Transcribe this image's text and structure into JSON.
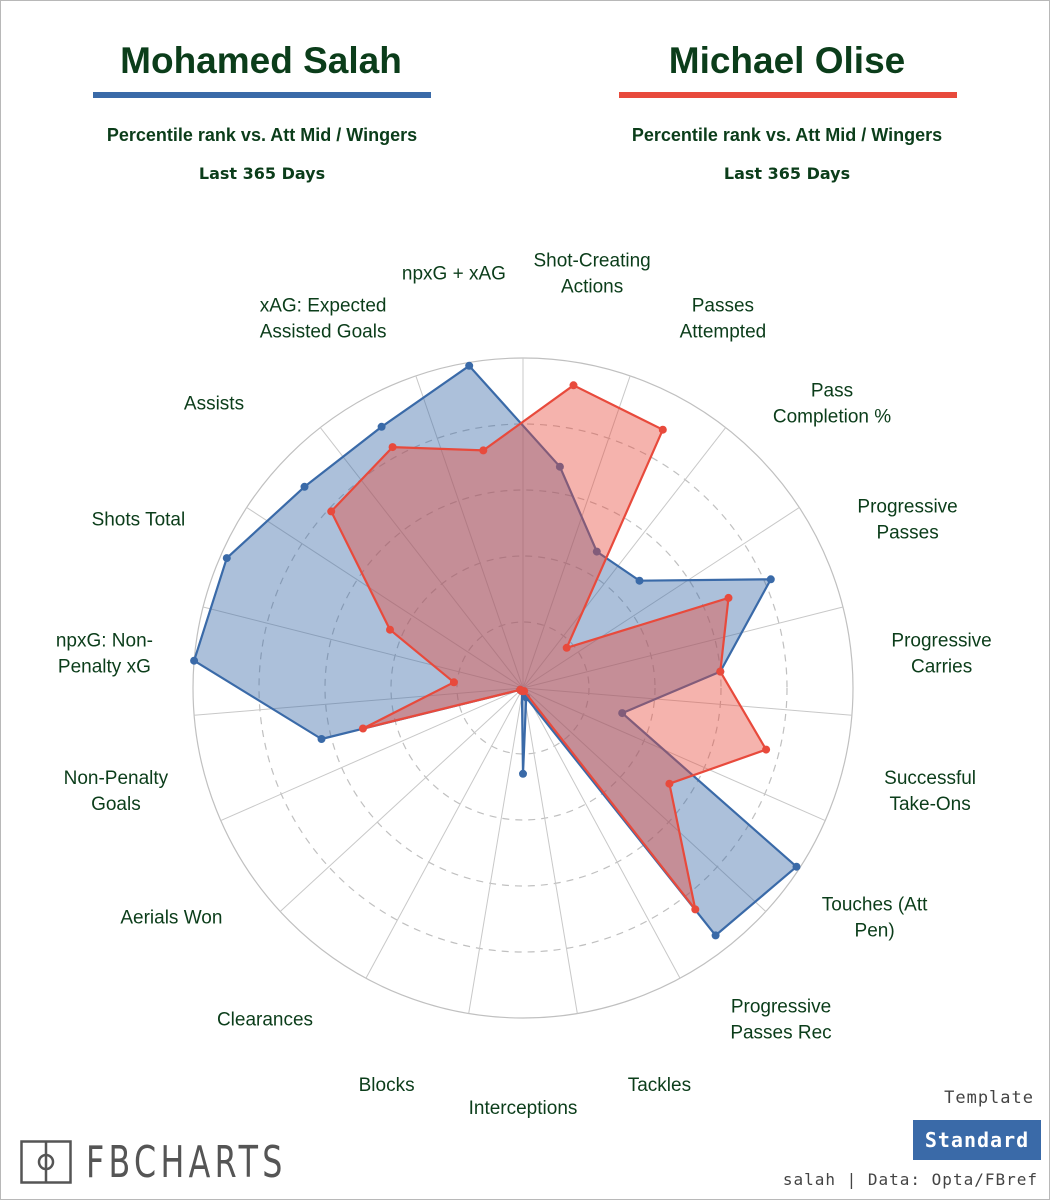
{
  "players": [
    {
      "name": "Mohamed Salah",
      "color": "#3a6aa8",
      "subtitle": "Percentile rank vs. Att Mid / Wingers",
      "period": "Last 365 Days"
    },
    {
      "name": "Michael Olise",
      "color": "#e84a3c",
      "subtitle": "Percentile rank vs. Att Mid / Wingers",
      "period": "Last 365 Days"
    }
  ],
  "chart_data": {
    "type": "radar",
    "scale_max": 100,
    "ring_levels": [
      20,
      40,
      60,
      80,
      100
    ],
    "categories": [
      "Shot-Creating\nActions",
      "Passes\nAttempted",
      "Pass\nCompletion %",
      "Progressive\nPasses",
      "Progressive\nCarries",
      "Successful\nTake-Ons",
      "Touches (Att\nPen)",
      "Progressive\nPasses Rec",
      "Tackles",
      "Interceptions",
      "Blocks",
      "Clearances",
      "Aerials Won",
      "Non-Penalty\nGoals",
      "npxG: Non-\nPenalty xG",
      "Shots Total",
      "Assists",
      "xAG: Expected\nAssisted Goals",
      "npxG + xAG"
    ],
    "series": [
      {
        "name": "Mohamed Salah",
        "color": "#3a6aa8",
        "values": [
          68,
          47,
          48,
          82,
          60,
          31,
          99,
          95,
          3,
          26,
          1,
          1,
          1,
          63,
          100,
          98,
          90,
          90,
          99
        ]
      },
      {
        "name": "Michael Olise",
        "color": "#e84a3c",
        "values": [
          93,
          89,
          18,
          68,
          60,
          76,
          53,
          85,
          1,
          1,
          1,
          1,
          1,
          50,
          21,
          44,
          79,
          83,
          73
        ]
      }
    ]
  },
  "branding": {
    "logo_text": "FBCHARTS",
    "template_label": "Template",
    "template_name": "Standard",
    "template_color": "#3a6aa8",
    "credit": "salah | Data: Opta/FBref"
  }
}
